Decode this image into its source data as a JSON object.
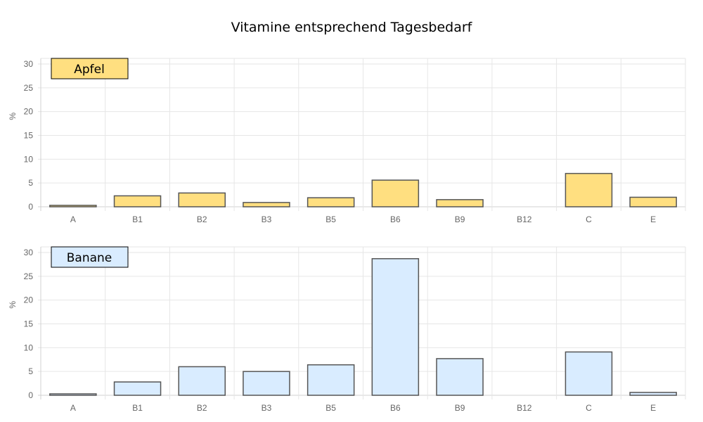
{
  "title": "Vitamine entsprechend Tagesbedarf",
  "chart_data": [
    {
      "type": "bar",
      "series_name": "Apfel",
      "color": "#ffdf80",
      "border_color": "#555555",
      "categories": [
        "A",
        "B1",
        "B2",
        "B3",
        "B5",
        "B6",
        "B9",
        "B12",
        "C",
        "E"
      ],
      "values": [
        0.3,
        2.3,
        2.9,
        0.9,
        1.9,
        5.6,
        1.5,
        0,
        7.0,
        2.0
      ],
      "ylabel": "%",
      "ylim": [
        0,
        30
      ],
      "yticks": [
        0,
        5,
        10,
        15,
        20,
        25,
        30
      ],
      "grid": true,
      "legend": "top-left"
    },
    {
      "type": "bar",
      "series_name": "Banane",
      "color": "#d9ecff",
      "border_color": "#555555",
      "categories": [
        "A",
        "B1",
        "B2",
        "B3",
        "B5",
        "B6",
        "B9",
        "B12",
        "C",
        "E"
      ],
      "values": [
        0.3,
        2.8,
        6.0,
        5.0,
        6.4,
        28.7,
        7.7,
        0,
        9.1,
        0.6
      ],
      "ylabel": "%",
      "ylim": [
        0,
        30
      ],
      "yticks": [
        0,
        5,
        10,
        15,
        20,
        25,
        30
      ],
      "grid": true,
      "legend": "top-left"
    }
  ]
}
